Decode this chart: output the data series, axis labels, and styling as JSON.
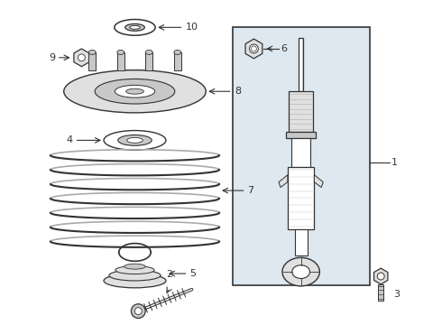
{
  "bg_color": "#ffffff",
  "line_color": "#333333",
  "part_fill": "#e0e0e0",
  "shaded_fill": "#c8c8c8",
  "box_bg": "#dde8f0",
  "figsize": [
    4.9,
    3.6
  ],
  "dpi": 100
}
